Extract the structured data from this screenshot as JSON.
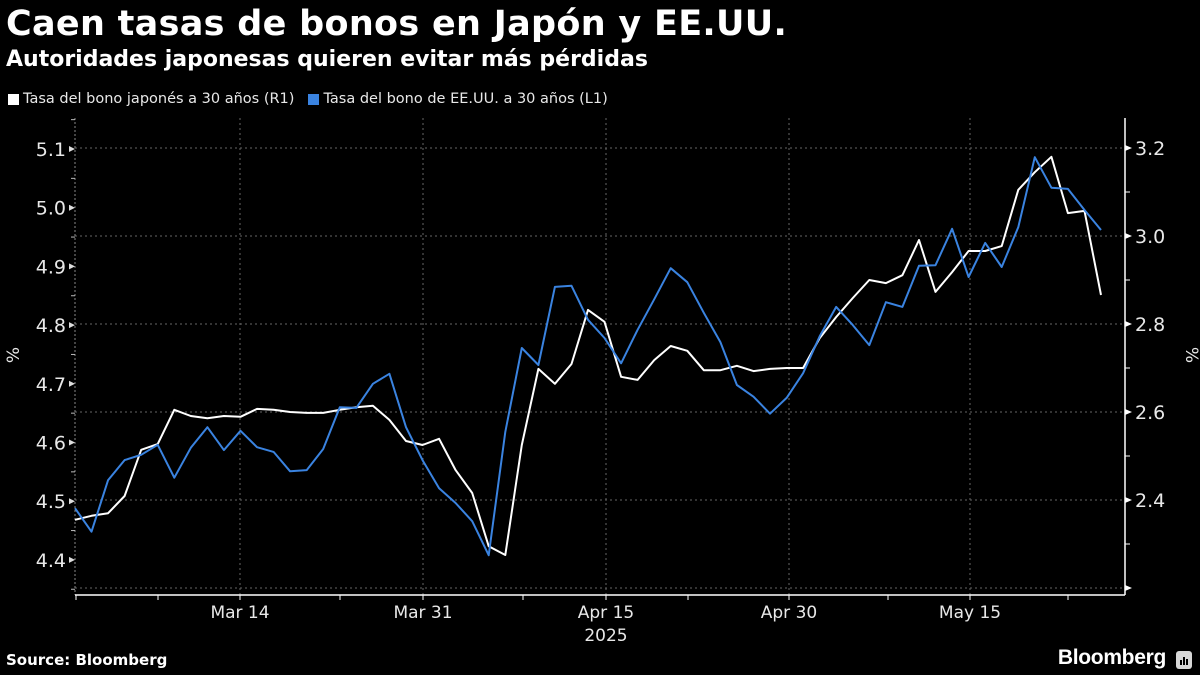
{
  "header": {
    "title": "Caen tasas de bonos en Japón y EE.UU.",
    "subtitle": "Autoridades japonesas quieren evitar más pérdidas"
  },
  "legend": [
    {
      "label": "Tasa del bono japonés a 30 años (R1)",
      "color": "#ffffff"
    },
    {
      "label": "Tasa del bono de EE.UU. a 30 años (L1)",
      "color": "#3a83e0"
    }
  ],
  "footer": {
    "source": "Source: Bloomberg",
    "brand": "Bloomberg"
  },
  "axes": {
    "left_unit": "%",
    "right_unit": "%",
    "left_ticks": [
      "5.1",
      "5.0",
      "4.9",
      "4.8",
      "4.7",
      "4.6",
      "4.5",
      "4.4"
    ],
    "right_ticks": [
      "3.2",
      "3.0",
      "2.8",
      "2.6",
      "2.4"
    ],
    "x_ticks": [
      "Mar 14",
      "Mar 31",
      "Apr 15",
      "Apr 30",
      "May 15"
    ],
    "x_year": "2025"
  },
  "chart_data": {
    "type": "line",
    "title": "Caen tasas de bonos en Japón y EE.UU.",
    "subtitle": "Autoridades japonesas quieren evitar más pérdidas",
    "xlabel": "2025",
    "ylabel_left": "%",
    "ylabel_right": "%",
    "ylim_left": [
      4.35,
      5.28
    ],
    "ylim_right": [
      2.2,
      3.27
    ],
    "x_tick_labels": [
      "Mar 14",
      "Mar 31",
      "Apr 15",
      "Apr 30",
      "May 15"
    ],
    "grid": true,
    "legend_position": "top-left",
    "series": [
      {
        "name": "Tasa del bono japonés a 30 años (R1)",
        "axis": "right",
        "color": "#ffffff",
        "values": [
          2.355,
          2.364,
          2.37,
          2.409,
          2.514,
          2.527,
          2.605,
          2.591,
          2.586,
          2.591,
          2.589,
          2.607,
          2.605,
          2.6,
          2.598,
          2.598,
          2.605,
          2.611,
          2.614,
          2.582,
          2.534,
          2.525,
          2.539,
          2.468,
          2.416,
          2.295,
          2.275,
          2.525,
          2.698,
          2.664,
          2.709,
          2.832,
          2.805,
          2.68,
          2.673,
          2.718,
          2.75,
          2.739,
          2.695,
          2.695,
          2.705,
          2.693,
          2.698,
          2.7,
          2.7,
          2.768,
          2.816,
          2.859,
          2.9,
          2.893,
          2.911,
          2.991,
          2.873,
          2.918,
          2.966,
          2.966,
          2.977,
          3.105,
          3.145,
          3.18,
          3.052,
          3.057,
          2.866
        ]
      },
      {
        "name": "Tasa del bono de EE.UU. a 30 años (L1)",
        "axis": "left",
        "color": "#3a83e0",
        "values": [
          4.488,
          4.448,
          4.536,
          4.57,
          4.579,
          4.596,
          4.54,
          4.591,
          4.626,
          4.587,
          4.62,
          4.592,
          4.584,
          4.551,
          4.553,
          4.589,
          4.66,
          4.659,
          4.7,
          4.717,
          4.626,
          4.57,
          4.522,
          4.497,
          4.466,
          4.408,
          4.618,
          4.761,
          4.732,
          4.865,
          4.867,
          4.809,
          4.778,
          4.735,
          4.792,
          4.844,
          4.897,
          4.873,
          4.821,
          4.771,
          4.698,
          4.678,
          4.649,
          4.676,
          4.718,
          4.781,
          4.831,
          4.8,
          4.766,
          4.839,
          4.831,
          4.901,
          4.902,
          4.964,
          4.882,
          4.94,
          4.899,
          4.967,
          5.086,
          5.034,
          5.032,
          4.996,
          4.962
        ]
      }
    ]
  }
}
